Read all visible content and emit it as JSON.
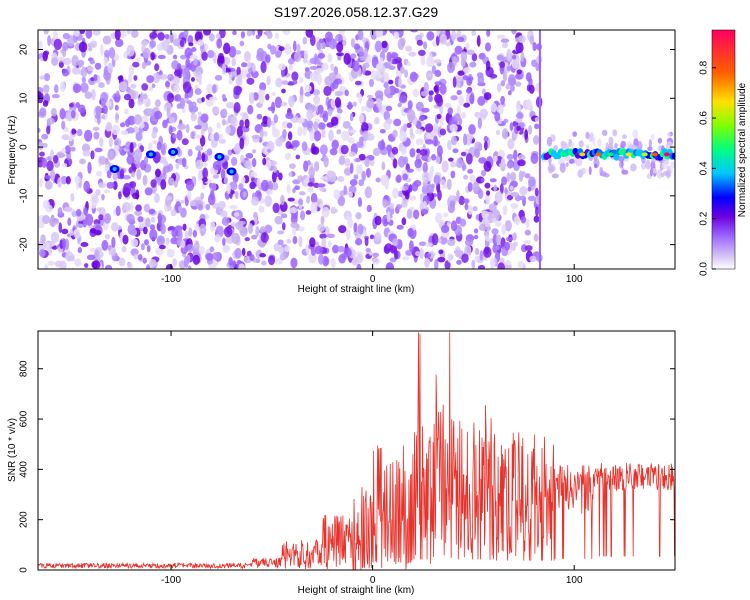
{
  "title": "S197.2026.058.12.37.G29",
  "spectrogram": {
    "type": "heatmap",
    "xlabel": "Height of straight line (km)",
    "ylabel": "Frequency (Hz)",
    "xlim": [
      -166,
      150
    ],
    "ylim": [
      -25,
      24
    ],
    "xticks": [
      -100,
      0,
      100
    ],
    "yticks": [
      -20,
      -10,
      0,
      10,
      20
    ],
    "noise_region_x": [
      -166,
      83
    ],
    "signal_region_x": [
      85,
      150
    ],
    "signal_freq_hz": -1.5,
    "colorbar": {
      "label": "Normalized spectral amplitude",
      "range": [
        0,
        0.95
      ],
      "ticks": [
        0.0,
        0.2,
        0.4,
        0.6,
        0.8
      ],
      "colors": [
        "#ffffff",
        "#d8c8f4",
        "#a070ff",
        "#7a1ee6",
        "#0000ff",
        "#00c8ff",
        "#00ff60",
        "#c8ff00",
        "#ffd000",
        "#ff5000",
        "#ff0060"
      ]
    }
  },
  "snr_plot": {
    "type": "line",
    "xlabel": "Height of straight line (km)",
    "ylabel": "SNR (10 * v/v)",
    "xlim": [
      -166,
      150
    ],
    "ylim": [
      0,
      950
    ],
    "xticks": [
      -100,
      0,
      100
    ],
    "yticks": [
      0,
      200,
      400,
      600,
      800
    ],
    "color": "#e8312a",
    "segments": [
      {
        "x_from": -166,
        "x_to": -60,
        "base": 15,
        "spread": 20
      },
      {
        "x_from": -60,
        "x_to": -45,
        "base": 25,
        "spread": 40
      },
      {
        "x_from": -45,
        "x_to": -25,
        "base": 50,
        "spread": 120
      },
      {
        "x_from": -25,
        "x_to": -10,
        "base": 90,
        "spread": 220
      },
      {
        "x_from": -10,
        "x_to": 0,
        "base": 120,
        "spread": 350
      },
      {
        "x_from": 0,
        "x_to": 20,
        "base": 200,
        "spread": 500
      },
      {
        "x_from": 20,
        "x_to": 60,
        "base": 280,
        "spread": 650
      },
      {
        "x_from": 60,
        "x_to": 90,
        "base": 250,
        "spread": 500
      },
      {
        "x_from": 90,
        "x_to": 110,
        "base": 300,
        "spread": 200
      },
      {
        "x_from": 110,
        "x_to": 150,
        "base": 360,
        "spread": 110
      }
    ]
  }
}
